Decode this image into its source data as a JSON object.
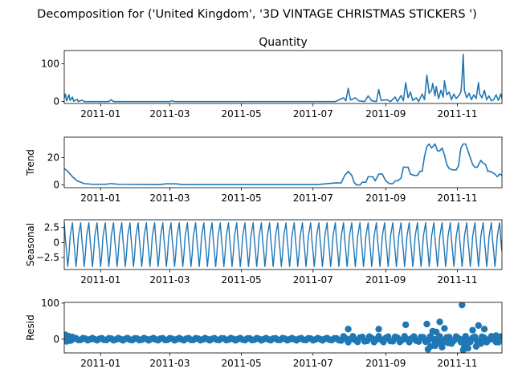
{
  "figure": {
    "title": "Decomposition for ('United Kingdom', '3D VINTAGE CHRISTMAS STICKERS ')"
  },
  "chart_data": [
    {
      "type": "line",
      "panel": "observed",
      "title": "Quantity",
      "ylabel": "",
      "ylim": [
        -5,
        135
      ],
      "yticks": [
        0,
        100
      ],
      "xlim": [
        "2010-12-01",
        "2011-12-09"
      ],
      "xticks": [
        "2011-01",
        "2011-03",
        "2011-05",
        "2011-07",
        "2011-09",
        "2011-11"
      ],
      "color": "#1f77b4",
      "points": [
        [
          "2010-12-01",
          10
        ],
        [
          "2010-12-02",
          20
        ],
        [
          "2010-12-03",
          2
        ],
        [
          "2010-12-05",
          18
        ],
        [
          "2010-12-06",
          3
        ],
        [
          "2010-12-08",
          12
        ],
        [
          "2010-12-09",
          1
        ],
        [
          "2010-12-12",
          6
        ],
        [
          "2010-12-13",
          0
        ],
        [
          "2010-12-16",
          4
        ],
        [
          "2010-12-18",
          0
        ],
        [
          "2011-01-08",
          0
        ],
        [
          "2011-01-10",
          5
        ],
        [
          "2011-01-12",
          0
        ],
        [
          "2011-03-01",
          0
        ],
        [
          "2011-03-03",
          2
        ],
        [
          "2011-03-05",
          0
        ],
        [
          "2011-07-20",
          0
        ],
        [
          "2011-07-27",
          10
        ],
        [
          "2011-07-29",
          2
        ],
        [
          "2011-07-31",
          35
        ],
        [
          "2011-08-02",
          4
        ],
        [
          "2011-08-06",
          10
        ],
        [
          "2011-08-09",
          2
        ],
        [
          "2011-08-14",
          0
        ],
        [
          "2011-08-17",
          15
        ],
        [
          "2011-08-20",
          2
        ],
        [
          "2011-08-24",
          0
        ],
        [
          "2011-08-26",
          32
        ],
        [
          "2011-08-28",
          3
        ],
        [
          "2011-09-02",
          5
        ],
        [
          "2011-09-05",
          0
        ],
        [
          "2011-09-09",
          12
        ],
        [
          "2011-09-11",
          0
        ],
        [
          "2011-09-14",
          16
        ],
        [
          "2011-09-16",
          2
        ],
        [
          "2011-09-18",
          50
        ],
        [
          "2011-09-20",
          10
        ],
        [
          "2011-09-22",
          25
        ],
        [
          "2011-09-24",
          3
        ],
        [
          "2011-09-27",
          10
        ],
        [
          "2011-09-29",
          0
        ],
        [
          "2011-10-02",
          20
        ],
        [
          "2011-10-04",
          5
        ],
        [
          "2011-10-06",
          70
        ],
        [
          "2011-10-08",
          22
        ],
        [
          "2011-10-10",
          30
        ],
        [
          "2011-10-11",
          48
        ],
        [
          "2011-10-13",
          15
        ],
        [
          "2011-10-14",
          40
        ],
        [
          "2011-10-16",
          8
        ],
        [
          "2011-10-18",
          30
        ],
        [
          "2011-10-20",
          12
        ],
        [
          "2011-10-21",
          55
        ],
        [
          "2011-10-23",
          18
        ],
        [
          "2011-10-25",
          25
        ],
        [
          "2011-10-27",
          5
        ],
        [
          "2011-10-29",
          20
        ],
        [
          "2011-10-31",
          8
        ],
        [
          "2011-11-02",
          15
        ],
        [
          "2011-11-04",
          25
        ],
        [
          "2011-11-05",
          60
        ],
        [
          "2011-11-06",
          125
        ],
        [
          "2011-11-07",
          30
        ],
        [
          "2011-11-09",
          10
        ],
        [
          "2011-11-11",
          22
        ],
        [
          "2011-11-13",
          5
        ],
        [
          "2011-11-15",
          18
        ],
        [
          "2011-11-17",
          8
        ],
        [
          "2011-11-19",
          50
        ],
        [
          "2011-11-20",
          20
        ],
        [
          "2011-11-22",
          10
        ],
        [
          "2011-11-24",
          30
        ],
        [
          "2011-11-26",
          5
        ],
        [
          "2011-11-28",
          15
        ],
        [
          "2011-11-30",
          2
        ],
        [
          "2011-12-02",
          5
        ],
        [
          "2011-12-04",
          18
        ],
        [
          "2011-12-06",
          3
        ],
        [
          "2011-12-08",
          20
        ],
        [
          "2011-12-09",
          8
        ]
      ]
    },
    {
      "type": "line",
      "panel": "trend",
      "title": "",
      "ylabel": "Trend",
      "ylim": [
        -2,
        35
      ],
      "yticks": [
        0,
        20
      ],
      "xlim": [
        "2010-12-01",
        "2011-12-09"
      ],
      "xticks": [
        "2011-01",
        "2011-03",
        "2011-05",
        "2011-07",
        "2011-09",
        "2011-11"
      ],
      "color": "#1f77b4",
      "points": [
        [
          "2010-12-01",
          12
        ],
        [
          "2010-12-04",
          10
        ],
        [
          "2010-12-08",
          6
        ],
        [
          "2010-12-12",
          3
        ],
        [
          "2010-12-18",
          1
        ],
        [
          "2010-12-25",
          0.5
        ],
        [
          "2011-01-05",
          0.5
        ],
        [
          "2011-01-10",
          1
        ],
        [
          "2011-01-16",
          0.5
        ],
        [
          "2011-02-20",
          0.3
        ],
        [
          "2011-02-26",
          0.8
        ],
        [
          "2011-03-06",
          0.8
        ],
        [
          "2011-03-12",
          0.3
        ],
        [
          "2011-07-05",
          0.3
        ],
        [
          "2011-07-20",
          1.5
        ],
        [
          "2011-07-25",
          1.5
        ],
        [
          "2011-07-28",
          7
        ],
        [
          "2011-07-31",
          10
        ],
        [
          "2011-08-03",
          7
        ],
        [
          "2011-08-05",
          2
        ],
        [
          "2011-08-07",
          0
        ],
        [
          "2011-08-10",
          0
        ],
        [
          "2011-08-12",
          2
        ],
        [
          "2011-08-15",
          2
        ],
        [
          "2011-08-17",
          6
        ],
        [
          "2011-08-21",
          6
        ],
        [
          "2011-08-23",
          3
        ],
        [
          "2011-08-26",
          8
        ],
        [
          "2011-08-29",
          8
        ],
        [
          "2011-09-01",
          3
        ],
        [
          "2011-09-04",
          1
        ],
        [
          "2011-09-07",
          1
        ],
        [
          "2011-09-09",
          3
        ],
        [
          "2011-09-11",
          3
        ],
        [
          "2011-09-14",
          5
        ],
        [
          "2011-09-16",
          13
        ],
        [
          "2011-09-20",
          13
        ],
        [
          "2011-09-22",
          8
        ],
        [
          "2011-09-25",
          7
        ],
        [
          "2011-09-28",
          7
        ],
        [
          "2011-09-30",
          10
        ],
        [
          "2011-10-02",
          10
        ],
        [
          "2011-10-04",
          21
        ],
        [
          "2011-10-06",
          28
        ],
        [
          "2011-10-08",
          30
        ],
        [
          "2011-10-10",
          27
        ],
        [
          "2011-10-13",
          30
        ],
        [
          "2011-10-15",
          25
        ],
        [
          "2011-10-17",
          25
        ],
        [
          "2011-10-19",
          27
        ],
        [
          "2011-10-21",
          22
        ],
        [
          "2011-10-23",
          15
        ],
        [
          "2011-10-25",
          12
        ],
        [
          "2011-10-28",
          11
        ],
        [
          "2011-10-31",
          11
        ],
        [
          "2011-11-02",
          14
        ],
        [
          "2011-11-04",
          27
        ],
        [
          "2011-11-06",
          30
        ],
        [
          "2011-11-08",
          30
        ],
        [
          "2011-11-10",
          25
        ],
        [
          "2011-11-12",
          20
        ],
        [
          "2011-11-14",
          15
        ],
        [
          "2011-11-16",
          13
        ],
        [
          "2011-11-18",
          13
        ],
        [
          "2011-11-21",
          18
        ],
        [
          "2011-11-23",
          16
        ],
        [
          "2011-11-25",
          15
        ],
        [
          "2011-11-27",
          10
        ],
        [
          "2011-11-29",
          10
        ],
        [
          "2011-12-01",
          9
        ],
        [
          "2011-12-03",
          8
        ],
        [
          "2011-12-05",
          6
        ],
        [
          "2011-12-07",
          8
        ],
        [
          "2011-12-09",
          7
        ]
      ]
    },
    {
      "type": "line",
      "panel": "seasonal",
      "title": "",
      "ylabel": "Seasonal",
      "ylim": [
        -4.5,
        3.8
      ],
      "yticks": [
        2.5,
        0.0,
        -2.5
      ],
      "xlim": [
        "2010-12-01",
        "2011-12-09"
      ],
      "xticks": [
        "2011-01",
        "2011-03",
        "2011-05",
        "2011-07",
        "2011-09",
        "2011-11"
      ],
      "color": "#1f77b4",
      "period_days": 7,
      "weekly_pattern": [
        3.3,
        0.5,
        -1.5,
        -4.0,
        -2.0,
        1.0,
        2.2
      ],
      "start": "2010-12-01",
      "end": "2011-12-09"
    },
    {
      "type": "scatter",
      "panel": "resid",
      "title": "",
      "ylabel": "Resid",
      "ylim": [
        -38,
        102
      ],
      "yticks": [
        0,
        100
      ],
      "xlim": [
        "2010-12-01",
        "2011-12-09"
      ],
      "xticks": [
        "2011-01",
        "2011-03",
        "2011-05",
        "2011-07",
        "2011-09",
        "2011-11"
      ],
      "color": "#1f77b4",
      "baseline": 0,
      "points": [
        [
          "2010-12-01",
          5
        ],
        [
          "2010-12-02",
          12
        ],
        [
          "2010-12-03",
          -6
        ],
        [
          "2010-12-05",
          8
        ],
        [
          "2010-12-06",
          -4
        ],
        [
          "2010-12-08",
          6
        ],
        [
          "2011-07-31",
          28
        ],
        [
          "2011-08-26",
          28
        ],
        [
          "2011-09-18",
          40
        ],
        [
          "2011-10-06",
          42
        ],
        [
          "2011-10-07",
          -28
        ],
        [
          "2011-10-09",
          -20
        ],
        [
          "2011-10-11",
          22
        ],
        [
          "2011-10-13",
          -18
        ],
        [
          "2011-10-14",
          20
        ],
        [
          "2011-10-16",
          -10
        ],
        [
          "2011-10-17",
          48
        ],
        [
          "2011-10-19",
          -22
        ],
        [
          "2011-10-21",
          30
        ],
        [
          "2011-10-24",
          -10
        ],
        [
          "2011-10-27",
          -12
        ],
        [
          "2011-11-05",
          95
        ],
        [
          "2011-11-06",
          -30
        ],
        [
          "2011-11-07",
          -20
        ],
        [
          "2011-11-09",
          -15
        ],
        [
          "2011-11-10",
          -25
        ],
        [
          "2011-11-14",
          25
        ],
        [
          "2011-11-17",
          -20
        ],
        [
          "2011-11-19",
          38
        ],
        [
          "2011-11-21",
          -12
        ],
        [
          "2011-11-24",
          28
        ],
        [
          "2011-11-26",
          -8
        ],
        [
          "2011-12-04",
          10
        ],
        [
          "2011-12-06",
          -8
        ]
      ]
    }
  ]
}
